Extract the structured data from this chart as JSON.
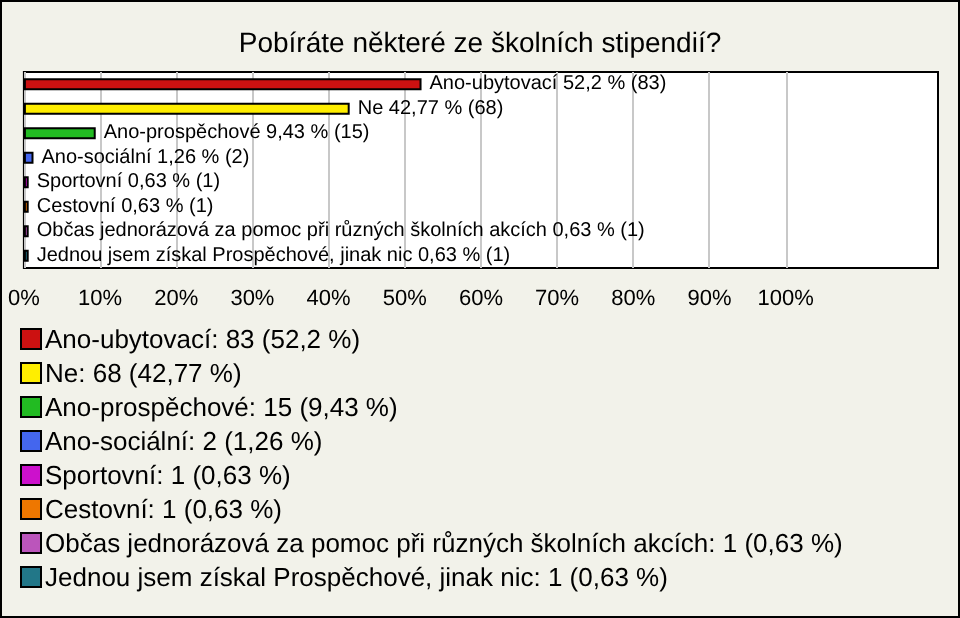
{
  "chart_data": {
    "type": "bar",
    "orientation": "horizontal",
    "stacked": true,
    "title": "Pobíráte některé ze školních stipendií?",
    "categories": [
      null,
      null,
      null,
      null,
      null,
      null,
      null,
      null
    ],
    "series": [
      {
        "name": "Ano-ubytovací: 83 (52,2 %)",
        "color": "#cc1111",
        "values": [
          52.2,
          null,
          null,
          null,
          null,
          null,
          null,
          null
        ],
        "value_labels": [
          "Ano-ubytovací 52,2 % (83)",
          null,
          null,
          null,
          null,
          null,
          null,
          null
        ]
      },
      {
        "name": "Ne: 68 (42,77 %)",
        "color": "#ffee00",
        "values": [
          null,
          42.77,
          null,
          null,
          null,
          null,
          null,
          null
        ],
        "value_labels": [
          null,
          "Ne 42,77 % (68)",
          null,
          null,
          null,
          null,
          null,
          null
        ]
      },
      {
        "name": "Ano-prospěchové: 15 (9,43 %)",
        "color": "#22bb22",
        "values": [
          null,
          null,
          9.43,
          null,
          null,
          null,
          null,
          null
        ],
        "value_labels": [
          null,
          null,
          "Ano-prospěchové 9,43 % (15)",
          null,
          null,
          null,
          null,
          null
        ]
      },
      {
        "name": "Ano-sociální: 2 (1,26 %)",
        "color": "#4466ee",
        "values": [
          null,
          null,
          null,
          1.26,
          null,
          null,
          null,
          null
        ],
        "value_labels": [
          null,
          null,
          null,
          "Ano-sociální 1,26 % (2)",
          null,
          null,
          null,
          null
        ]
      },
      {
        "name": "Sportovní: 1 (0,63 %)",
        "color": "#cc11cc",
        "values": [
          null,
          null,
          null,
          null,
          0.63,
          null,
          null,
          null
        ],
        "value_labels": [
          null,
          null,
          null,
          null,
          "Sportovní 0,63 % (1)",
          null,
          null,
          null
        ]
      },
      {
        "name": "Cestovní: 1 (0,63 %)",
        "color": "#ee7700",
        "values": [
          null,
          null,
          null,
          null,
          null,
          0.63,
          null,
          null
        ],
        "value_labels": [
          null,
          null,
          null,
          null,
          null,
          "Cestovní 0,63 % (1)",
          null,
          null
        ]
      },
      {
        "name": "Občas jednorázová za pomoc při různých školních akcích: 1 (0,63 %)",
        "color": "#bb55bb",
        "values": [
          null,
          null,
          null,
          null,
          null,
          null,
          0.63,
          null
        ],
        "value_labels": [
          null,
          null,
          null,
          null,
          null,
          null,
          "Občas jednorázová za pomoc při různých školních akcích 0,63 % (1)",
          null
        ]
      },
      {
        "name": "Jednou jsem získal Prospěchové, jinak nic: 1 (0,63 %)",
        "color": "#227788",
        "values": [
          null,
          null,
          null,
          null,
          null,
          null,
          null,
          0.63
        ],
        "value_labels": [
          null,
          null,
          null,
          null,
          null,
          null,
          null,
          "Jednou jsem získal Prospěchové, jinak nic 0,63 % (1)"
        ]
      }
    ],
    "xlim": [
      0,
      120
    ],
    "xticks": [
      {
        "value": 0,
        "label": "0%"
      },
      {
        "value": 10,
        "label": "10%"
      },
      {
        "value": 20,
        "label": "20%"
      },
      {
        "value": 30,
        "label": "30%"
      },
      {
        "value": 40,
        "label": "40%"
      },
      {
        "value": 50,
        "label": "50%"
      },
      {
        "value": 60,
        "label": "60%"
      },
      {
        "value": 70,
        "label": "70%"
      },
      {
        "value": 80,
        "label": "80%"
      },
      {
        "value": 90,
        "label": "90%"
      },
      {
        "value": 100,
        "label": "100%"
      }
    ],
    "grid": "x",
    "legend": "bottom",
    "tick_labels": "x"
  }
}
